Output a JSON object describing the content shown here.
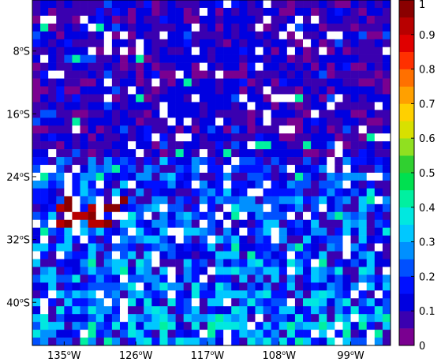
{
  "map": {
    "lat_labels": [
      {
        "text": "8",
        "deg": "o",
        "suffix": "S",
        "lat": -8
      },
      {
        "text": "16",
        "deg": "o",
        "suffix": "S",
        "lat": -16
      },
      {
        "text": "24",
        "deg": "o",
        "suffix": "S",
        "lat": -24
      },
      {
        "text": "32",
        "deg": "o",
        "suffix": "S",
        "lat": -32
      },
      {
        "text": "40",
        "deg": "o",
        "suffix": "S",
        "lat": -40
      }
    ],
    "lon_labels": [
      {
        "text": "135",
        "deg": "o",
        "suffix": "W",
        "lon": -135
      },
      {
        "text": "126",
        "deg": "o",
        "suffix": "W",
        "lon": -126
      },
      {
        "text": "117",
        "deg": "o",
        "suffix": "W",
        "lon": -117
      },
      {
        "text": "108",
        "deg": "o",
        "suffix": "W",
        "lon": -108
      },
      {
        "text": "99",
        "deg": "o",
        "suffix": "W",
        "lon": -99
      }
    ],
    "lon_range": [
      -139.0,
      -94.0
    ],
    "lat_range": [
      -1.5,
      -45.5
    ],
    "missing_color": "#ffffff"
  },
  "colorbar": {
    "ticks": [
      "0",
      "0.1",
      "0.2",
      "0.3",
      "0.4",
      "0.5",
      "0.6",
      "0.7",
      "0.8",
      "0.9",
      "1"
    ],
    "range": [
      0,
      1
    ],
    "colors": [
      "#7a0090",
      "#3a00b0",
      "#0000e0",
      "#0010ff",
      "#0050ff",
      "#0090ff",
      "#00c8ff",
      "#00e8e0",
      "#00f0a0",
      "#00e050",
      "#30d030",
      "#90e020",
      "#d8e000",
      "#ffd000",
      "#ffa000",
      "#ff7000",
      "#ff3000",
      "#e00000",
      "#b80000",
      "#8a0000"
    ]
  }
}
